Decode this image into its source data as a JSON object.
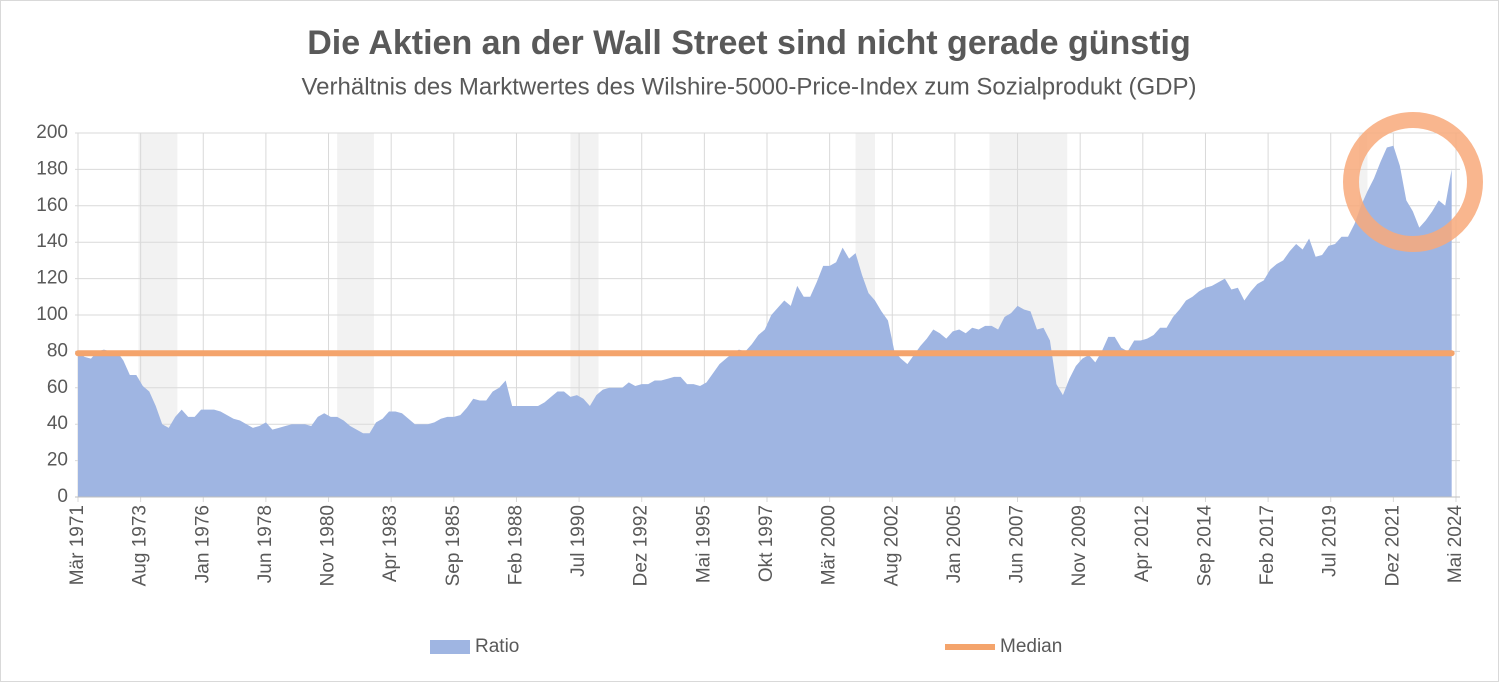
{
  "chart_data": {
    "type": "area",
    "title": "Die Aktien an der Wall Street sind nicht gerade günstig",
    "subtitle": "Verhältnis des Marktwertes des Wilshire-5000-Price-Index zum Sozialprodukt (GDP)",
    "x": [
      "1971-03",
      "1971-06",
      "1971-09",
      "1971-12",
      "1972-03",
      "1972-06",
      "1972-09",
      "1972-12",
      "1973-03",
      "1973-06",
      "1973-09",
      "1973-12",
      "1974-03",
      "1974-06",
      "1974-09",
      "1974-12",
      "1975-03",
      "1975-06",
      "1975-09",
      "1975-12",
      "1976-03",
      "1976-06",
      "1976-09",
      "1976-12",
      "1977-03",
      "1977-06",
      "1977-09",
      "1977-12",
      "1978-03",
      "1978-06",
      "1978-09",
      "1978-12",
      "1979-03",
      "1979-06",
      "1979-09",
      "1979-12",
      "1980-03",
      "1980-06",
      "1980-09",
      "1980-12",
      "1981-03",
      "1981-06",
      "1981-09",
      "1981-12",
      "1982-03",
      "1982-06",
      "1982-09",
      "1982-12",
      "1983-03",
      "1983-06",
      "1983-09",
      "1983-12",
      "1984-03",
      "1984-06",
      "1984-09",
      "1984-12",
      "1985-03",
      "1985-06",
      "1985-09",
      "1985-12",
      "1986-03",
      "1986-06",
      "1986-09",
      "1986-12",
      "1987-03",
      "1987-06",
      "1987-09",
      "1987-12",
      "1988-03",
      "1988-06",
      "1988-09",
      "1988-12",
      "1989-03",
      "1989-06",
      "1989-09",
      "1989-12",
      "1990-03",
      "1990-06",
      "1990-09",
      "1990-12",
      "1991-03",
      "1991-06",
      "1991-09",
      "1991-12",
      "1992-03",
      "1992-06",
      "1992-09",
      "1992-12",
      "1993-03",
      "1993-06",
      "1993-09",
      "1993-12",
      "1994-03",
      "1994-06",
      "1994-09",
      "1994-12",
      "1995-03",
      "1995-06",
      "1995-09",
      "1995-12",
      "1996-03",
      "1996-06",
      "1996-09",
      "1996-12",
      "1997-03",
      "1997-06",
      "1997-09",
      "1997-12",
      "1998-03",
      "1998-06",
      "1998-09",
      "1998-12",
      "1999-03",
      "1999-06",
      "1999-09",
      "1999-12",
      "2000-03",
      "2000-06",
      "2000-09",
      "2000-12",
      "2001-03",
      "2001-06",
      "2001-09",
      "2001-12",
      "2002-03",
      "2002-06",
      "2002-09",
      "2002-12",
      "2003-03",
      "2003-06",
      "2003-09",
      "2003-12",
      "2004-03",
      "2004-06",
      "2004-09",
      "2004-12",
      "2005-03",
      "2005-06",
      "2005-09",
      "2005-12",
      "2006-03",
      "2006-06",
      "2006-09",
      "2006-12",
      "2007-03",
      "2007-06",
      "2007-09",
      "2007-12",
      "2008-03",
      "2008-06",
      "2008-09",
      "2008-12",
      "2009-03",
      "2009-06",
      "2009-09",
      "2009-12",
      "2010-03",
      "2010-06",
      "2010-09",
      "2010-12",
      "2011-03",
      "2011-06",
      "2011-09",
      "2011-12",
      "2012-03",
      "2012-06",
      "2012-09",
      "2012-12",
      "2013-03",
      "2013-06",
      "2013-09",
      "2013-12",
      "2014-03",
      "2014-06",
      "2014-09",
      "2014-12",
      "2015-03",
      "2015-06",
      "2015-09",
      "2015-12",
      "2016-03",
      "2016-06",
      "2016-09",
      "2016-12",
      "2017-03",
      "2017-06",
      "2017-09",
      "2017-12",
      "2018-03",
      "2018-06",
      "2018-09",
      "2018-12",
      "2019-03",
      "2019-06",
      "2019-09",
      "2019-12",
      "2020-03",
      "2020-06",
      "2020-09",
      "2020-12",
      "2021-03",
      "2021-06",
      "2021-09",
      "2021-12",
      "2022-03",
      "2022-06",
      "2022-09",
      "2022-12",
      "2023-03",
      "2023-06",
      "2023-09",
      "2023-12",
      "2024-03"
    ],
    "series": [
      {
        "name": "Ratio",
        "color": "#9fb5e2",
        "values": [
          80,
          77,
          76,
          80,
          81,
          80,
          80,
          75,
          67,
          67,
          61,
          58,
          50,
          40,
          38,
          44,
          48,
          44,
          44,
          48,
          48,
          48,
          47,
          45,
          43,
          42,
          40,
          38,
          39,
          41,
          37,
          38,
          39,
          40,
          40,
          40,
          39,
          44,
          46,
          44,
          44,
          42,
          39,
          37,
          35,
          35,
          41,
          43,
          47,
          47,
          46,
          43,
          40,
          40,
          40,
          41,
          43,
          44,
          44,
          45,
          49,
          54,
          53,
          53,
          58,
          60,
          64,
          50,
          50,
          50,
          50,
          50,
          52,
          55,
          58,
          58,
          55,
          56,
          54,
          50,
          56,
          59,
          60,
          60,
          60,
          63,
          61,
          62,
          62,
          64,
          64,
          65,
          66,
          66,
          62,
          62,
          61,
          63,
          68,
          73,
          76,
          79,
          81,
          80,
          84,
          89,
          92,
          100,
          104,
          108,
          105,
          116,
          110,
          110,
          118,
          127,
          127,
          129,
          137,
          131,
          134,
          122,
          112,
          108,
          102,
          97,
          80,
          76,
          73,
          78,
          83,
          87,
          92,
          90,
          87,
          91,
          92,
          90,
          93,
          92,
          94,
          94,
          92,
          99,
          101,
          105,
          103,
          102,
          92,
          93,
          86,
          62,
          56,
          65,
          72,
          76,
          78,
          74,
          80,
          88,
          88,
          82,
          80,
          86,
          86,
          87,
          89,
          93,
          93,
          99,
          103,
          108,
          110,
          113,
          115,
          116,
          118,
          120,
          114,
          115,
          108,
          113,
          117,
          119,
          125,
          128,
          130,
          135,
          139,
          136,
          142,
          132,
          133,
          138,
          139,
          143,
          143,
          150,
          160,
          168,
          175,
          184,
          192,
          193,
          182,
          163,
          157,
          148,
          152,
          157,
          163,
          160,
          180
        ]
      },
      {
        "name": "Median",
        "color": "#f4a46c",
        "value": 79
      }
    ],
    "shaded_periods": [
      [
        "1973-07",
        "1975-01"
      ],
      [
        "1981-03",
        "1982-08"
      ],
      [
        "1990-03",
        "1991-04"
      ],
      [
        "2001-03",
        "2001-12"
      ],
      [
        "2006-05",
        "2009-05"
      ],
      [
        "2020-08",
        "2020-12"
      ]
    ],
    "xlim": [
      "1971-03",
      "2024-05"
    ],
    "xticks": [
      {
        "value": "1971-03",
        "label": "Mär 1971"
      },
      {
        "value": "1973-08",
        "label": "Aug 1973"
      },
      {
        "value": "1976-01",
        "label": "Jan 1976"
      },
      {
        "value": "1978-06",
        "label": "Jun 1978"
      },
      {
        "value": "1980-11",
        "label": "Nov 1980"
      },
      {
        "value": "1983-04",
        "label": "Apr 1983"
      },
      {
        "value": "1985-09",
        "label": "Sep 1985"
      },
      {
        "value": "1988-02",
        "label": "Feb 1988"
      },
      {
        "value": "1990-07",
        "label": "Jul 1990"
      },
      {
        "value": "1992-12",
        "label": "Dez 1992"
      },
      {
        "value": "1995-05",
        "label": "Mai 1995"
      },
      {
        "value": "1997-10",
        "label": "Okt 1997"
      },
      {
        "value": "2000-03",
        "label": "Mär 2000"
      },
      {
        "value": "2002-08",
        "label": "Aug 2002"
      },
      {
        "value": "2005-01",
        "label": "Jan 2005"
      },
      {
        "value": "2007-06",
        "label": "Jun 2007"
      },
      {
        "value": "2009-11",
        "label": "Nov 2009"
      },
      {
        "value": "2012-04",
        "label": "Apr 2012"
      },
      {
        "value": "2014-09",
        "label": "Sep 2014"
      },
      {
        "value": "2017-02",
        "label": "Feb 2017"
      },
      {
        "value": "2019-07",
        "label": "Jul 2019"
      },
      {
        "value": "2021-12",
        "label": "Dez 2021"
      },
      {
        "value": "2024-05",
        "label": "Mai 2024"
      }
    ],
    "ylim": [
      0,
      200
    ],
    "yticks": [
      0,
      20,
      40,
      60,
      80,
      100,
      120,
      140,
      160,
      180,
      200
    ],
    "grid": true
  }
}
